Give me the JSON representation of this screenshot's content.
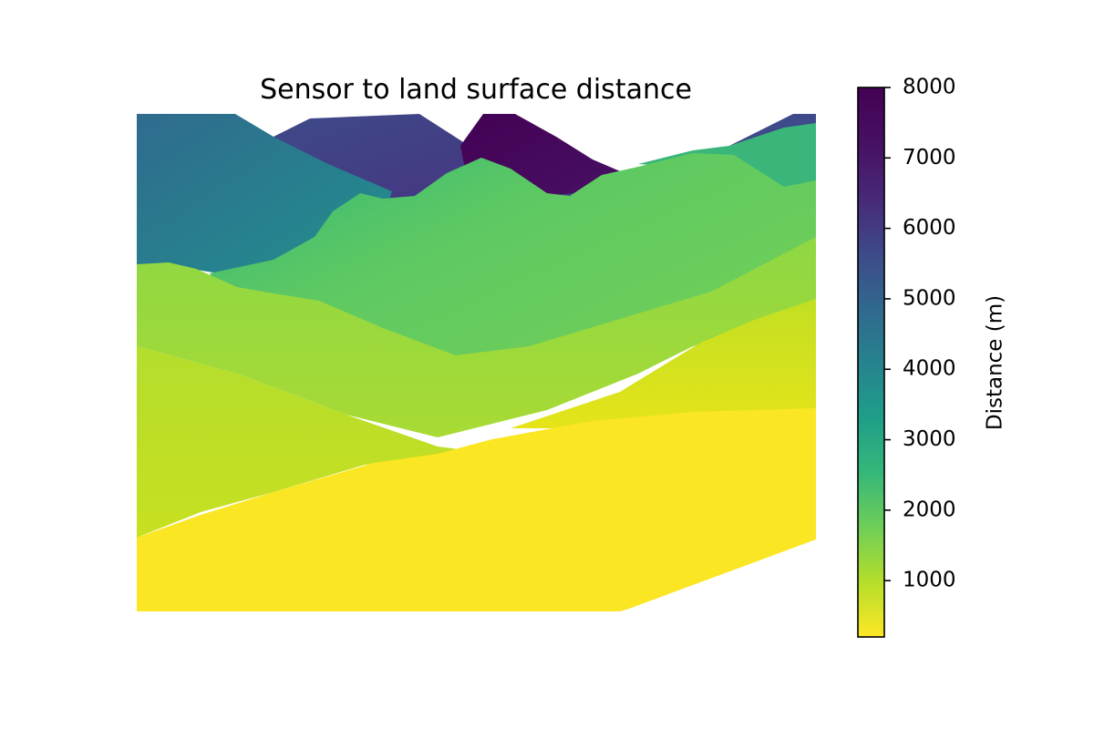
{
  "chart_data": {
    "type": "heatmap",
    "title": "Sensor to land surface distance",
    "xlabel": "",
    "ylabel": "",
    "colormap": "viridis_r",
    "colorbar": {
      "label": "Distance (m)",
      "range": [
        200,
        8000
      ],
      "ticks": [
        1000,
        2000,
        3000,
        4000,
        5000,
        6000,
        7000,
        8000
      ],
      "tick_labels": [
        "1000",
        "2000",
        "3000",
        "4000",
        "5000",
        "6000",
        "7000",
        "8000"
      ]
    },
    "axes_visible": false,
    "grid": false
  }
}
